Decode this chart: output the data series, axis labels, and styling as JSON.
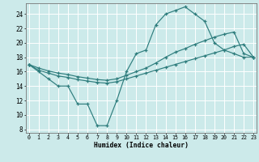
{
  "xlabel": "Humidex (Indice chaleur)",
  "background_color": "#cceaea",
  "grid_color": "#ffffff",
  "line_color": "#2e7d7d",
  "x_ticks": [
    0,
    1,
    2,
    3,
    4,
    5,
    6,
    7,
    8,
    9,
    10,
    11,
    12,
    13,
    14,
    15,
    16,
    17,
    18,
    19,
    20,
    21,
    22,
    23
  ],
  "ylim": [
    7.5,
    25.5
  ],
  "xlim": [
    -0.3,
    23.3
  ],
  "yticks": [
    8,
    10,
    12,
    14,
    16,
    18,
    20,
    22,
    24
  ],
  "line1_x": [
    0,
    1,
    2,
    3,
    4,
    5,
    6,
    7,
    8,
    9,
    10,
    11,
    12,
    13,
    14,
    15,
    16,
    17,
    18,
    19,
    20,
    21,
    22,
    23
  ],
  "line1_y": [
    17,
    16,
    15,
    14,
    14,
    11.5,
    11.5,
    8.5,
    8.5,
    12,
    16,
    18.5,
    19,
    22.5,
    24,
    24.5,
    25,
    24,
    23,
    20,
    19,
    18.5,
    18,
    18
  ],
  "line2_x": [
    0,
    1,
    2,
    3,
    4,
    5,
    6,
    7,
    8,
    9,
    10,
    11,
    12,
    13,
    14,
    15,
    16,
    17,
    18,
    19,
    20,
    21,
    22,
    23
  ],
  "line2_y": [
    17,
    16.2,
    15.8,
    15.4,
    15.2,
    14.9,
    14.7,
    14.5,
    14.4,
    14.6,
    15.0,
    15.4,
    15.8,
    16.2,
    16.6,
    17.0,
    17.4,
    17.8,
    18.2,
    18.6,
    19.0,
    19.5,
    19.8,
    18.0
  ],
  "line3_x": [
    0,
    1,
    2,
    3,
    4,
    5,
    6,
    7,
    8,
    9,
    10,
    11,
    12,
    13,
    14,
    15,
    16,
    17,
    18,
    19,
    20,
    21,
    22,
    23
  ],
  "line3_y": [
    17,
    16.5,
    16.1,
    15.8,
    15.6,
    15.3,
    15.1,
    14.9,
    14.8,
    15.0,
    15.5,
    16.0,
    16.5,
    17.2,
    18.0,
    18.7,
    19.2,
    19.8,
    20.3,
    20.8,
    21.2,
    21.5,
    18.5,
    18.0
  ]
}
